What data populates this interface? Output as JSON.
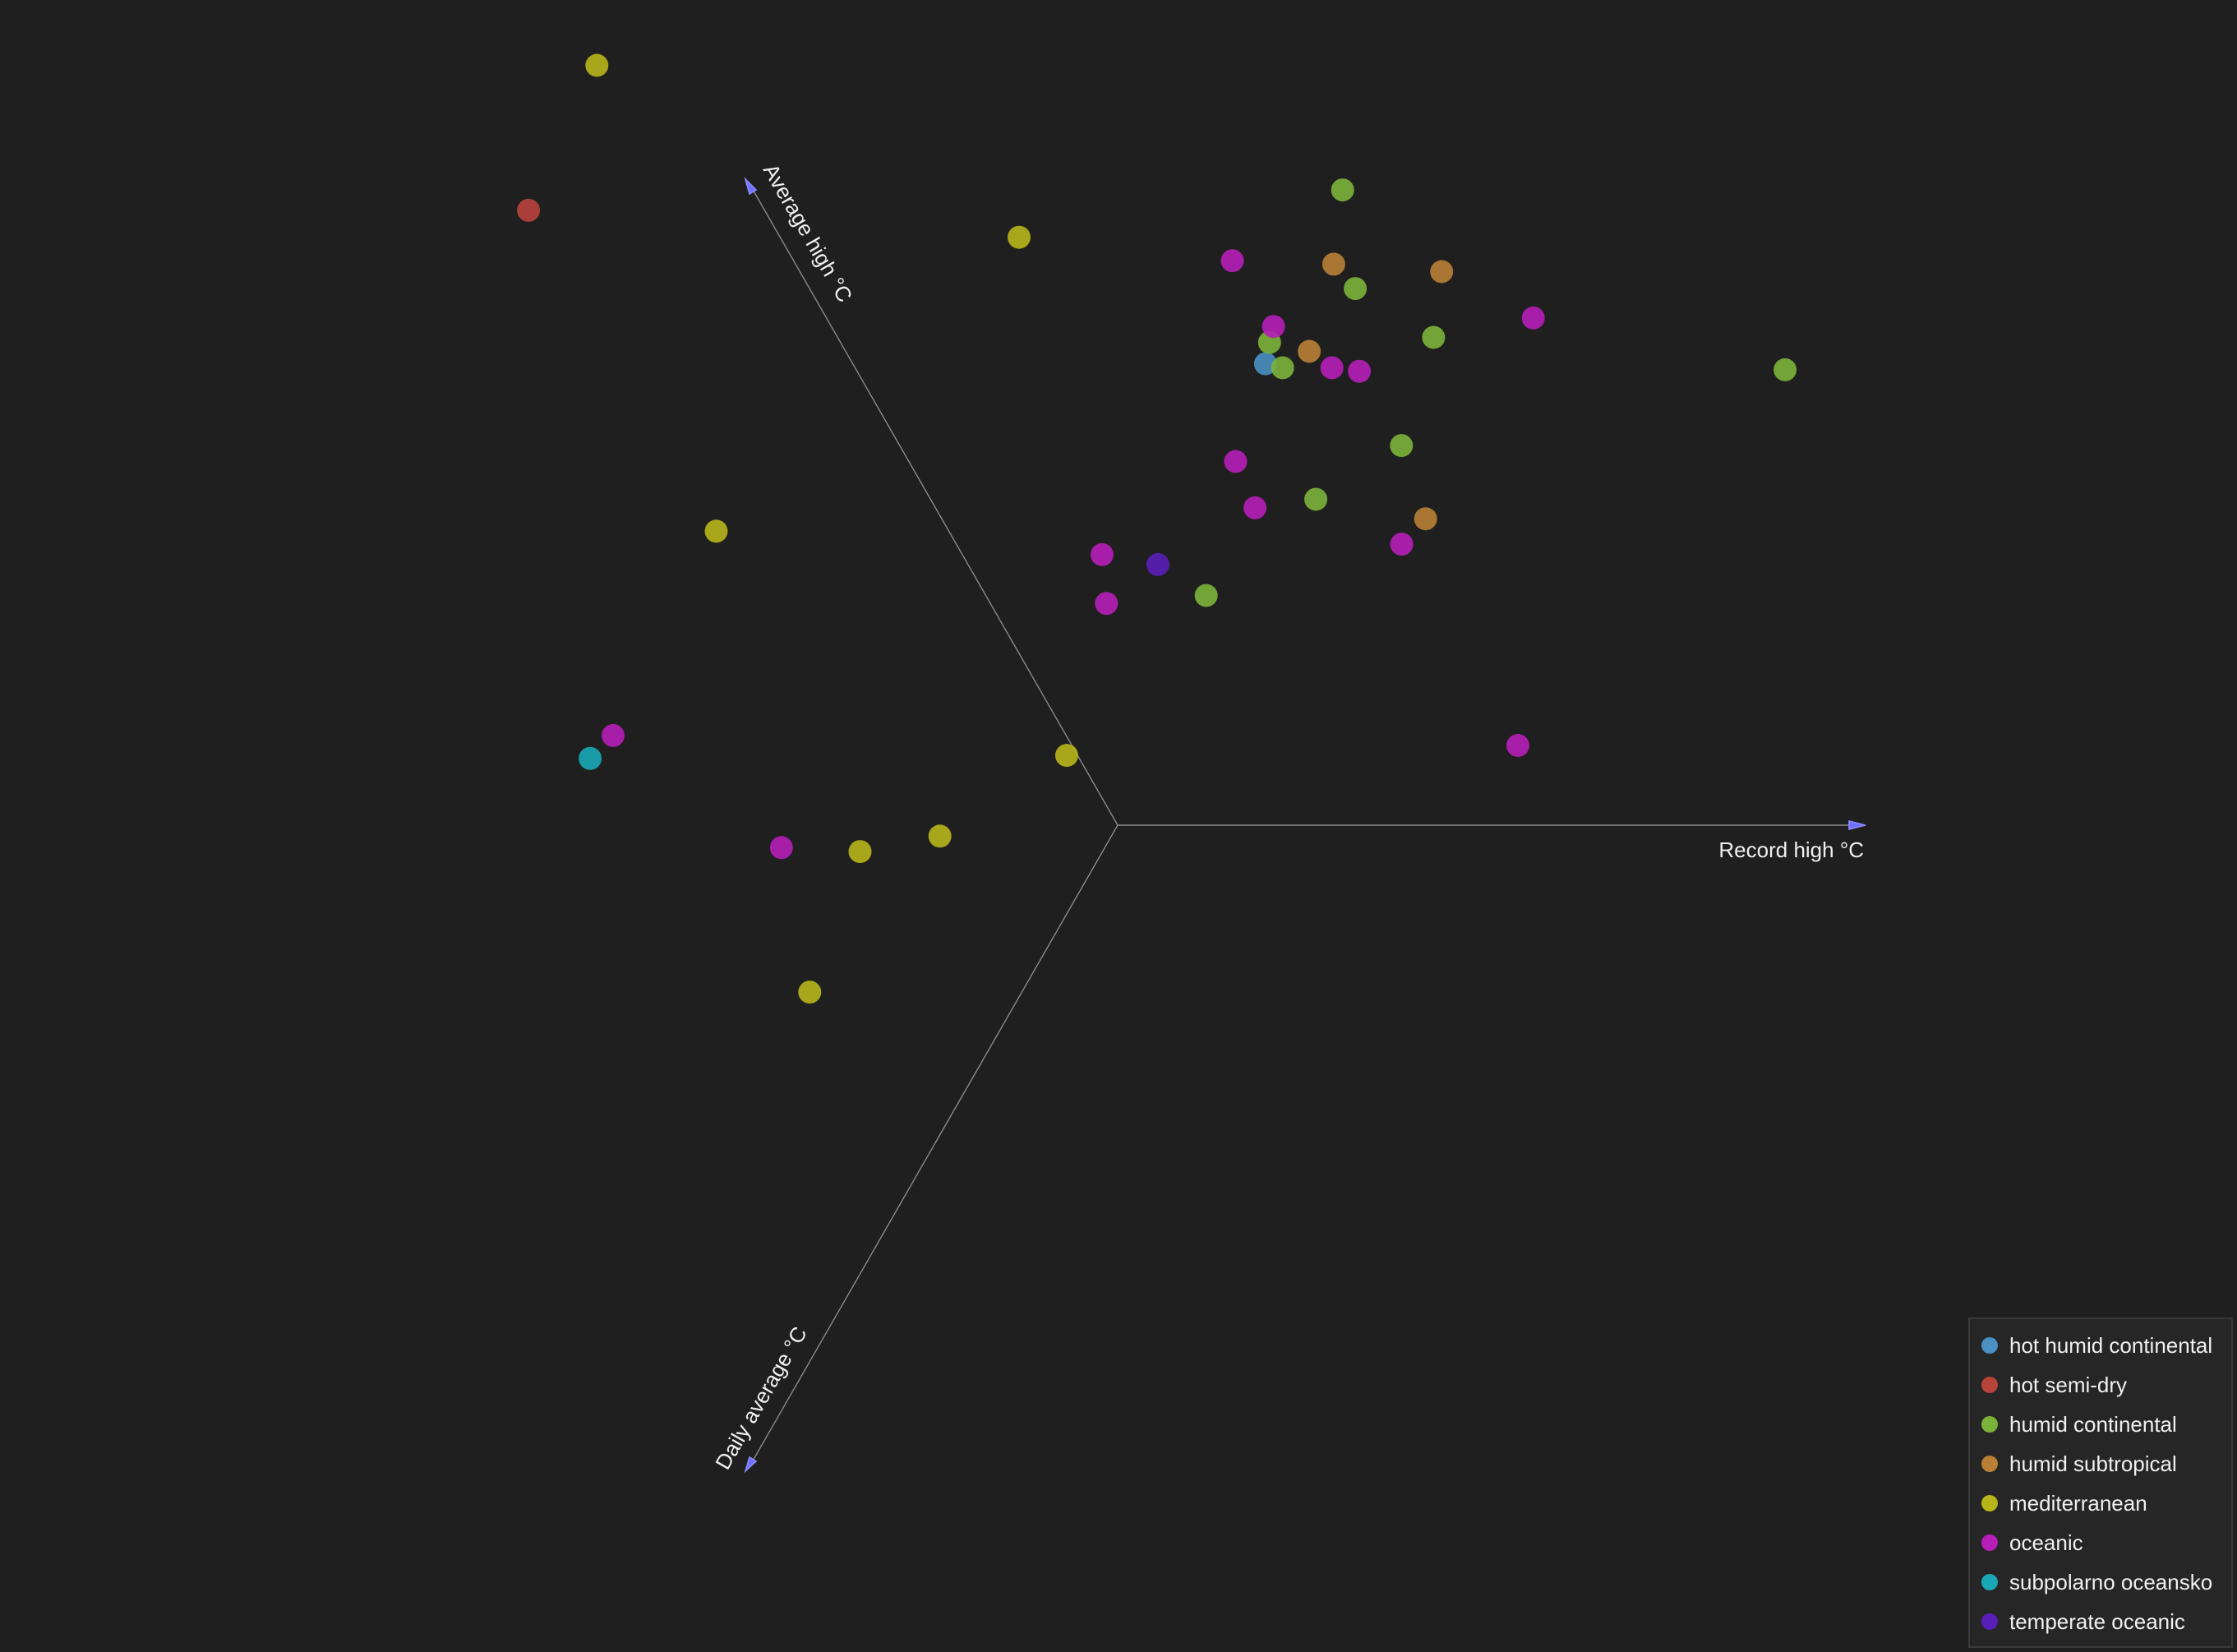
{
  "chart_data": {
    "type": "scatter",
    "projection": "3d",
    "axes": {
      "x": {
        "label": "Record high °C"
      },
      "y": {
        "label": "Average high °C"
      },
      "z": {
        "label": "Daily average °C"
      }
    },
    "grid": false,
    "legend_position": "bottom-right",
    "series": [
      {
        "name": "hot humid continental",
        "color": "#4a90c2",
        "points": [
          [
            36.2,
            20.6,
            8.5
          ],
          [
            33.8,
            14.2,
            10.4
          ]
        ]
      },
      {
        "name": "hot semi-dry",
        "color": "#b8433b",
        "points": [
          [
            30.5,
            19.8,
            12.5
          ]
        ]
      },
      {
        "name": "humid continental",
        "color": "#7bb33a",
        "points": [
          [
            35.8,
            17.2,
            8.2
          ],
          [
            34.4,
            15.5,
            9.5
          ],
          [
            34.4,
            15.3,
            10.9
          ],
          [
            34.2,
            14.6,
            10.7
          ],
          [
            34.6,
            14.9,
            10.1
          ],
          [
            35.1,
            14.3,
            10.2
          ],
          [
            34.6,
            13.8,
            11.5
          ],
          [
            34.8,
            13.4,
            10.7
          ],
          [
            37.8,
            13.8,
            10.2
          ],
          [
            34.1,
            13.7,
            12.4
          ]
        ]
      },
      {
        "name": "humid subtropical",
        "color": "#b87f35",
        "points": [
          [
            36.4,
            20.7,
            9.5
          ],
          [
            35.1,
            16.2,
            10.7
          ],
          [
            35.1,
            14.7,
            9.8
          ],
          [
            34.4,
            14.7,
            10.6
          ],
          [
            35.4,
            13.5,
            11.5
          ]
        ]
      },
      {
        "name": "mediterranean",
        "color": "#b7b51a",
        "points": [
          [
            30.8,
            20.5,
            11.5
          ],
          [
            32.3,
            16.0,
            10.3
          ],
          [
            29.4,
            13.0,
            11.3
          ],
          [
            33.9,
            14.0,
            14.2
          ],
          [
            32.4,
            12.6,
            14.1
          ],
          [
            31.4,
            11.9,
            13.8
          ],
          [
            30.8,
            10.5,
            14.3
          ]
        ]
      },
      {
        "name": "oceanic",
        "color": "#b61eb7",
        "points": [
          [
            34.2,
            16.1,
            10.6
          ],
          [
            34.6,
            15.7,
            11.0
          ],
          [
            34.5,
            15.0,
            11.9
          ],
          [
            34.6,
            14.6,
            10.7
          ],
          [
            34.9,
            14.7,
            10.8
          ],
          [
            36.0,
            14.6,
            10.2
          ],
          [
            33.6,
            12.9,
            11.0
          ],
          [
            32.7,
            13.1,
            11.6
          ],
          [
            32.6,
            12.5,
            11.7
          ],
          [
            34.9,
            12.8,
            11.3
          ],
          [
            27.7,
            10.0,
            11.4
          ],
          [
            30.5,
            11.5,
            13.5
          ],
          [
            36.3,
            12.0,
            12.8
          ]
        ]
      },
      {
        "name": "subpolarno oceansko",
        "color": "#1aa8b7",
        "points": [
          [
            27.5,
            9.8,
            11.5
          ]
        ]
      },
      {
        "name": "temperate oceanic",
        "color": "#5a1eb8",
        "points": [
          [
            33.2,
            13.1,
            11.7
          ]
        ]
      }
    ]
  },
  "legend": {
    "items": [
      {
        "label": "hot humid continental",
        "color": "#4a90c2"
      },
      {
        "label": "hot semi-dry",
        "color": "#b8433b"
      },
      {
        "label": "humid continental",
        "color": "#7bb33a"
      },
      {
        "label": "humid subtropical",
        "color": "#b87f35"
      },
      {
        "label": "mediterranean",
        "color": "#b7b51a"
      },
      {
        "label": "oceanic",
        "color": "#b61eb7"
      },
      {
        "label": "subpolarno oceansko",
        "color": "#1aa8b7"
      },
      {
        "label": "temperate oceanic",
        "color": "#5a1eb8"
      }
    ]
  }
}
